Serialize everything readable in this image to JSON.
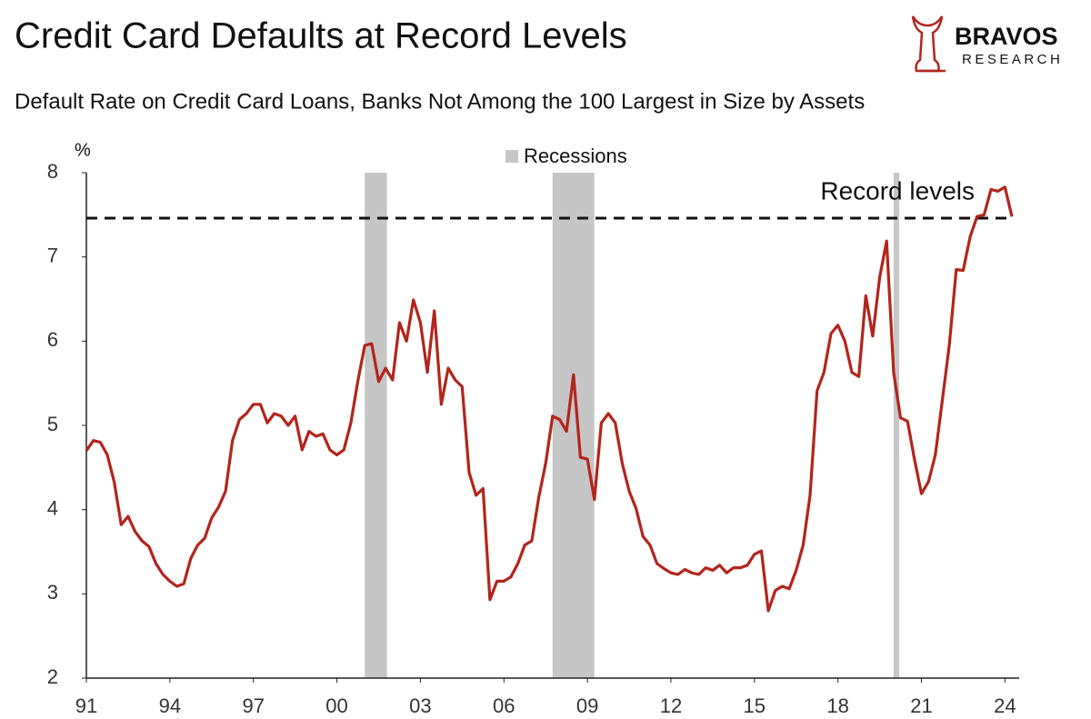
{
  "chart_data": {
    "type": "line",
    "title": "Credit Card Defaults at Record Levels",
    "subtitle": "Default Rate on Credit Card Loans, Banks Not Among the 100 Largest in Size by Assets",
    "y_label": "%",
    "logo": {
      "name": "BRAVOS",
      "tagline": "RESEARCH"
    },
    "x": [
      1991,
      1991.25,
      1991.5,
      1991.75,
      1992,
      1992.25,
      1992.5,
      1992.75,
      1993,
      1993.25,
      1993.5,
      1993.75,
      1994,
      1994.25,
      1994.5,
      1994.75,
      1995,
      1995.25,
      1995.5,
      1995.75,
      1996,
      1996.25,
      1996.5,
      1996.75,
      1997,
      1997.25,
      1997.5,
      1997.75,
      1998,
      1998.25,
      1998.5,
      1998.75,
      1999,
      1999.25,
      1999.5,
      1999.75,
      2000,
      2000.25,
      2000.5,
      2000.75,
      2001,
      2001.25,
      2001.5,
      2001.75,
      2002,
      2002.25,
      2002.5,
      2002.75,
      2003,
      2003.25,
      2003.5,
      2003.75,
      2004,
      2004.25,
      2004.5,
      2004.75,
      2005,
      2005.25,
      2005.5,
      2005.75,
      2006,
      2006.25,
      2006.5,
      2006.75,
      2007,
      2007.25,
      2007.5,
      2007.75,
      2008,
      2008.25,
      2008.5,
      2008.75,
      2009,
      2009.25,
      2009.5,
      2009.75,
      2010,
      2010.25,
      2010.5,
      2010.75,
      2011,
      2011.25,
      2011.5,
      2011.75,
      2012,
      2012.25,
      2012.5,
      2012.75,
      2013,
      2013.25,
      2013.5,
      2013.75,
      2014,
      2014.25,
      2014.5,
      2014.75,
      2015,
      2015.25,
      2015.5,
      2015.75,
      2016,
      2016.25,
      2016.5,
      2016.75,
      2017,
      2017.25,
      2017.5,
      2017.75,
      2018,
      2018.25,
      2018.5,
      2018.75,
      2019,
      2019.25,
      2019.5,
      2019.75,
      2020,
      2020.25,
      2020.5,
      2020.75,
      2021,
      2021.25,
      2021.5,
      2021.75,
      2022,
      2022.25,
      2022.5,
      2022.75,
      2023,
      2023.25,
      2023.5,
      2023.75,
      2024,
      2024.25
    ],
    "series": [
      {
        "color": "#b3241c",
        "values": [
          4.7,
          4.82,
          4.8,
          4.65,
          4.33,
          3.82,
          3.92,
          3.74,
          3.63,
          3.56,
          3.36,
          3.23,
          3.15,
          3.09,
          3.12,
          3.42,
          3.58,
          3.66,
          3.9,
          4.03,
          4.22,
          4.82,
          5.07,
          5.14,
          5.25,
          5.25,
          5.03,
          5.14,
          5.11,
          5.0,
          5.11,
          4.71,
          4.93,
          4.87,
          4.9,
          4.71,
          4.65,
          4.71,
          5.03,
          5.52,
          5.95,
          5.97,
          5.52,
          5.68,
          5.54,
          6.22,
          6.0,
          6.49,
          6.22,
          5.63,
          6.36,
          5.25,
          5.68,
          5.54,
          5.46,
          4.44,
          4.17,
          4.25,
          2.93,
          3.15,
          3.15,
          3.2,
          3.36,
          3.58,
          3.63,
          4.14,
          4.55,
          5.11,
          5.07,
          4.93,
          5.6,
          4.62,
          4.6,
          4.12,
          5.03,
          5.14,
          5.03,
          4.55,
          4.22,
          4.01,
          3.68,
          3.58,
          3.36,
          3.3,
          3.25,
          3.23,
          3.29,
          3.25,
          3.23,
          3.31,
          3.28,
          3.34,
          3.25,
          3.31,
          3.31,
          3.34,
          3.47,
          3.51,
          2.8,
          3.04,
          3.09,
          3.06,
          3.28,
          3.58,
          4.17,
          5.41,
          5.63,
          6.09,
          6.19,
          6.0,
          5.63,
          5.58,
          6.54,
          6.06,
          6.76,
          7.19,
          5.63,
          5.09,
          5.05,
          4.6,
          4.19,
          4.33,
          4.65,
          5.3,
          5.95,
          6.85,
          6.84,
          7.24,
          7.48,
          7.5,
          7.8,
          7.78,
          7.83,
          7.48
        ]
      }
    ],
    "recessions": {
      "name": "Recessions",
      "color": "#c6c6c6",
      "periods": [
        {
          "start": 2001,
          "end": 2001.8
        },
        {
          "start": 2007.75,
          "end": 2009.25
        },
        {
          "start": 2020,
          "end": 2020.2
        }
      ]
    },
    "reference_line": {
      "value": 7.46,
      "label": "Record levels"
    },
    "xlim": [
      1991,
      2024.25
    ],
    "xticks": [
      {
        "value": 1991,
        "label": "91"
      },
      {
        "value": 1994,
        "label": "94"
      },
      {
        "value": 1997,
        "label": "97"
      },
      {
        "value": 2000,
        "label": "00"
      },
      {
        "value": 2003,
        "label": "03"
      },
      {
        "value": 2006,
        "label": "06"
      },
      {
        "value": 2009,
        "label": "09"
      },
      {
        "value": 2012,
        "label": "12"
      },
      {
        "value": 2015,
        "label": "15"
      },
      {
        "value": 2018,
        "label": "18"
      },
      {
        "value": 2021,
        "label": "21"
      },
      {
        "value": 2024,
        "label": "24"
      }
    ],
    "ylim": [
      2,
      8
    ],
    "yticks": [
      2,
      3,
      4,
      5,
      6,
      7,
      8
    ],
    "grid": false
  }
}
